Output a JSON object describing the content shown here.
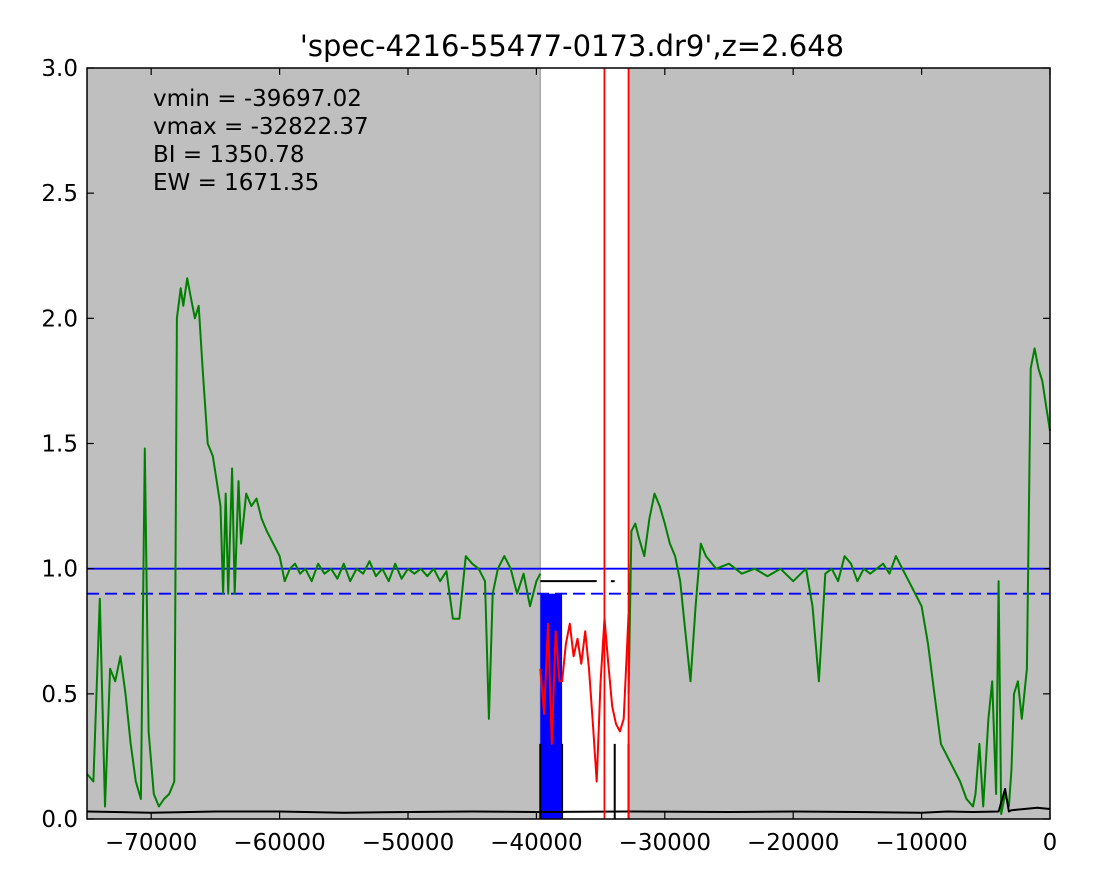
{
  "chart_data": {
    "type": "line",
    "title": "'spec-4216-55477-0173.dr9',z=2.648",
    "xlabel": "",
    "ylabel": "",
    "xlim": [
      -75000,
      0
    ],
    "ylim": [
      0.0,
      3.0
    ],
    "x_ticks": [
      -70000,
      -60000,
      -50000,
      -40000,
      -30000,
      -20000,
      -10000,
      0
    ],
    "x_tick_labels": [
      "−70000",
      "−60000",
      "−50000",
      "−40000",
      "−30000",
      "−20000",
      "−10000",
      "0"
    ],
    "y_ticks": [
      0.0,
      0.5,
      1.0,
      1.5,
      2.0,
      2.5,
      3.0
    ],
    "y_tick_labels": [
      "0.0",
      "0.5",
      "1.0",
      "1.5",
      "2.0",
      "2.5",
      "3.0"
    ],
    "grid": false,
    "legend": "none",
    "background_color": "#bfbfbf",
    "annotations": [
      "vmin = -39697.02",
      "vmax = -32822.37",
      "BI = 1350.78",
      "EW = 1671.35"
    ],
    "white_band": [
      -39697,
      -32822
    ],
    "vertical_lines": [
      {
        "x": -34700,
        "color": "#ff0000"
      },
      {
        "x": -32822,
        "color": "#ff0000"
      }
    ],
    "horizontal_lines": [
      {
        "y": 1.0,
        "color": "#0000ff",
        "style": "solid"
      },
      {
        "y": 0.9,
        "color": "#0000ff",
        "style": "dashed"
      }
    ],
    "filled_regions": [
      {
        "x0": -39697,
        "x1": -38000,
        "y0": 0,
        "y1": 0.9,
        "color": "#0000ff"
      }
    ],
    "segments": [
      {
        "x0": -39697,
        "x1": -35300,
        "y": 0.95,
        "color": "#000000"
      },
      {
        "x0": -34200,
        "x1": -33900,
        "y": 0.95,
        "color": "#000000"
      }
    ],
    "black_bars": [
      {
        "x0": -39697,
        "x1": -38000,
        "height": 0.3
      },
      {
        "x0": -33900,
        "x1": -32822,
        "height": 0.3
      }
    ],
    "series": [
      {
        "color": "#008000",
        "x": [
          -75000,
          -74500,
          -74000,
          -73600,
          -73200,
          -72800,
          -72400,
          -72000,
          -71600,
          -71200,
          -70800,
          -70500,
          -70200,
          -69800,
          -69400,
          -69000,
          -68600,
          -68200,
          -68000,
          -67700,
          -67500,
          -67200,
          -66900,
          -66600,
          -66300,
          -66000,
          -65600,
          -65200,
          -64900,
          -64600,
          -64400,
          -64200,
          -64000,
          -63700,
          -63500,
          -63200,
          -63000,
          -62600,
          -62200,
          -61800,
          -61400,
          -61000,
          -60500,
          -60000,
          -59600,
          -59200,
          -58800,
          -58400,
          -58000,
          -57500,
          -57000,
          -56500,
          -56000,
          -55500,
          -55000,
          -54500,
          -54000,
          -53500,
          -53000,
          -52500,
          -52000,
          -51500,
          -51000,
          -50500,
          -50000,
          -49500,
          -49000,
          -48500,
          -48000,
          -47500,
          -47000,
          -46500,
          -46000,
          -45500,
          -45000,
          -44500,
          -44000,
          -43700,
          -43400,
          -43000,
          -42500,
          -42000,
          -41500,
          -41000,
          -40500,
          -40000,
          -39697
        ],
        "y": [
          0.18,
          0.15,
          0.88,
          0.05,
          0.6,
          0.55,
          0.65,
          0.5,
          0.3,
          0.15,
          0.08,
          1.48,
          0.35,
          0.1,
          0.05,
          0.08,
          0.1,
          0.15,
          2.0,
          2.12,
          2.05,
          2.16,
          2.08,
          2.0,
          2.05,
          1.8,
          1.5,
          1.45,
          1.35,
          1.25,
          0.9,
          1.3,
          0.9,
          1.4,
          0.9,
          1.35,
          1.1,
          1.3,
          1.25,
          1.28,
          1.2,
          1.15,
          1.1,
          1.05,
          0.95,
          1.0,
          1.02,
          0.98,
          1.0,
          0.95,
          1.02,
          0.98,
          1.0,
          0.96,
          1.02,
          0.95,
          1.0,
          0.98,
          1.03,
          0.97,
          1.0,
          0.95,
          1.02,
          0.96,
          1.0,
          0.98,
          1.0,
          0.97,
          1.0,
          0.95,
          0.99,
          0.8,
          0.8,
          1.05,
          1.02,
          1.0,
          0.95,
          0.4,
          0.9,
          1.0,
          1.05,
          1.0,
          0.9,
          0.98,
          0.85,
          0.95,
          0.98
        ]
      },
      {
        "color": "#008000",
        "x": [
          -32822,
          -32600,
          -32300,
          -32000,
          -31600,
          -31200,
          -30800,
          -30400,
          -30000,
          -29600,
          -29200,
          -28800,
          -28400,
          -28000,
          -27600,
          -27200,
          -26800,
          -26000,
          -25000,
          -24000,
          -23000,
          -22000,
          -21000,
          -20000,
          -19000,
          -18500,
          -18000,
          -17500,
          -17000,
          -16500,
          -16000,
          -15500,
          -15000,
          -14500,
          -14000,
          -13500,
          -13000,
          -12500,
          -12000,
          -11500,
          -11000,
          -10500,
          -10000,
          -9500,
          -9000,
          -8500,
          -8000,
          -7500,
          -7000,
          -6500,
          -6000,
          -5800,
          -5500,
          -5200,
          -4800,
          -4500,
          -4200,
          -4000,
          -3800,
          -3500,
          -3200,
          -3000,
          -2800,
          -2500,
          -2200,
          -1800,
          -1500,
          -1200,
          -900,
          -600,
          -300,
          0
        ],
        "y": [
          0.5,
          1.15,
          1.18,
          1.12,
          1.05,
          1.2,
          1.3,
          1.25,
          1.18,
          1.1,
          1.05,
          0.95,
          0.75,
          0.55,
          0.85,
          1.1,
          1.05,
          1.0,
          1.02,
          0.98,
          1.0,
          0.97,
          1.0,
          0.95,
          1.0,
          0.85,
          0.55,
          0.98,
          1.0,
          0.95,
          1.05,
          1.02,
          0.95,
          1.0,
          0.98,
          1.0,
          1.02,
          0.98,
          1.05,
          1.0,
          0.95,
          0.9,
          0.85,
          0.7,
          0.5,
          0.3,
          0.25,
          0.2,
          0.15,
          0.08,
          0.05,
          0.1,
          0.3,
          0.05,
          0.4,
          0.55,
          0.1,
          0.95,
          0.02,
          0.1,
          0.05,
          0.2,
          0.5,
          0.55,
          0.4,
          0.6,
          1.8,
          1.88,
          1.8,
          1.75,
          1.65,
          1.55
        ]
      },
      {
        "color": "#ff0000",
        "x": [
          -39697,
          -39400,
          -39100,
          -38800,
          -38500,
          -38200,
          -38000,
          -37700,
          -37400,
          -37100,
          -36800,
          -36500,
          -36200,
          -35900,
          -35600,
          -35300,
          -35000,
          -34700,
          -34400,
          -34100,
          -33800,
          -33500,
          -33200,
          -32822
        ],
        "y": [
          0.6,
          0.42,
          0.78,
          0.3,
          0.75,
          0.55,
          0.55,
          0.7,
          0.78,
          0.65,
          0.72,
          0.62,
          0.75,
          0.6,
          0.38,
          0.15,
          0.55,
          0.8,
          0.62,
          0.45,
          0.38,
          0.35,
          0.4,
          0.82
        ]
      },
      {
        "color": "#000000",
        "x": [
          -75000,
          -70000,
          -65000,
          -60000,
          -55000,
          -50000,
          -45000,
          -40000,
          -32822,
          -25000,
          -20000,
          -15000,
          -10000,
          -8000,
          -6000,
          -4000,
          -3500,
          -3200,
          -3000,
          -2000,
          -1000,
          0
        ],
        "y": [
          0.03,
          0.025,
          0.03,
          0.03,
          0.025,
          0.028,
          0.03,
          0.028,
          0.03,
          0.028,
          0.03,
          0.028,
          0.025,
          0.03,
          0.028,
          0.03,
          0.12,
          0.03,
          0.035,
          0.04,
          0.045,
          0.04
        ]
      }
    ]
  }
}
